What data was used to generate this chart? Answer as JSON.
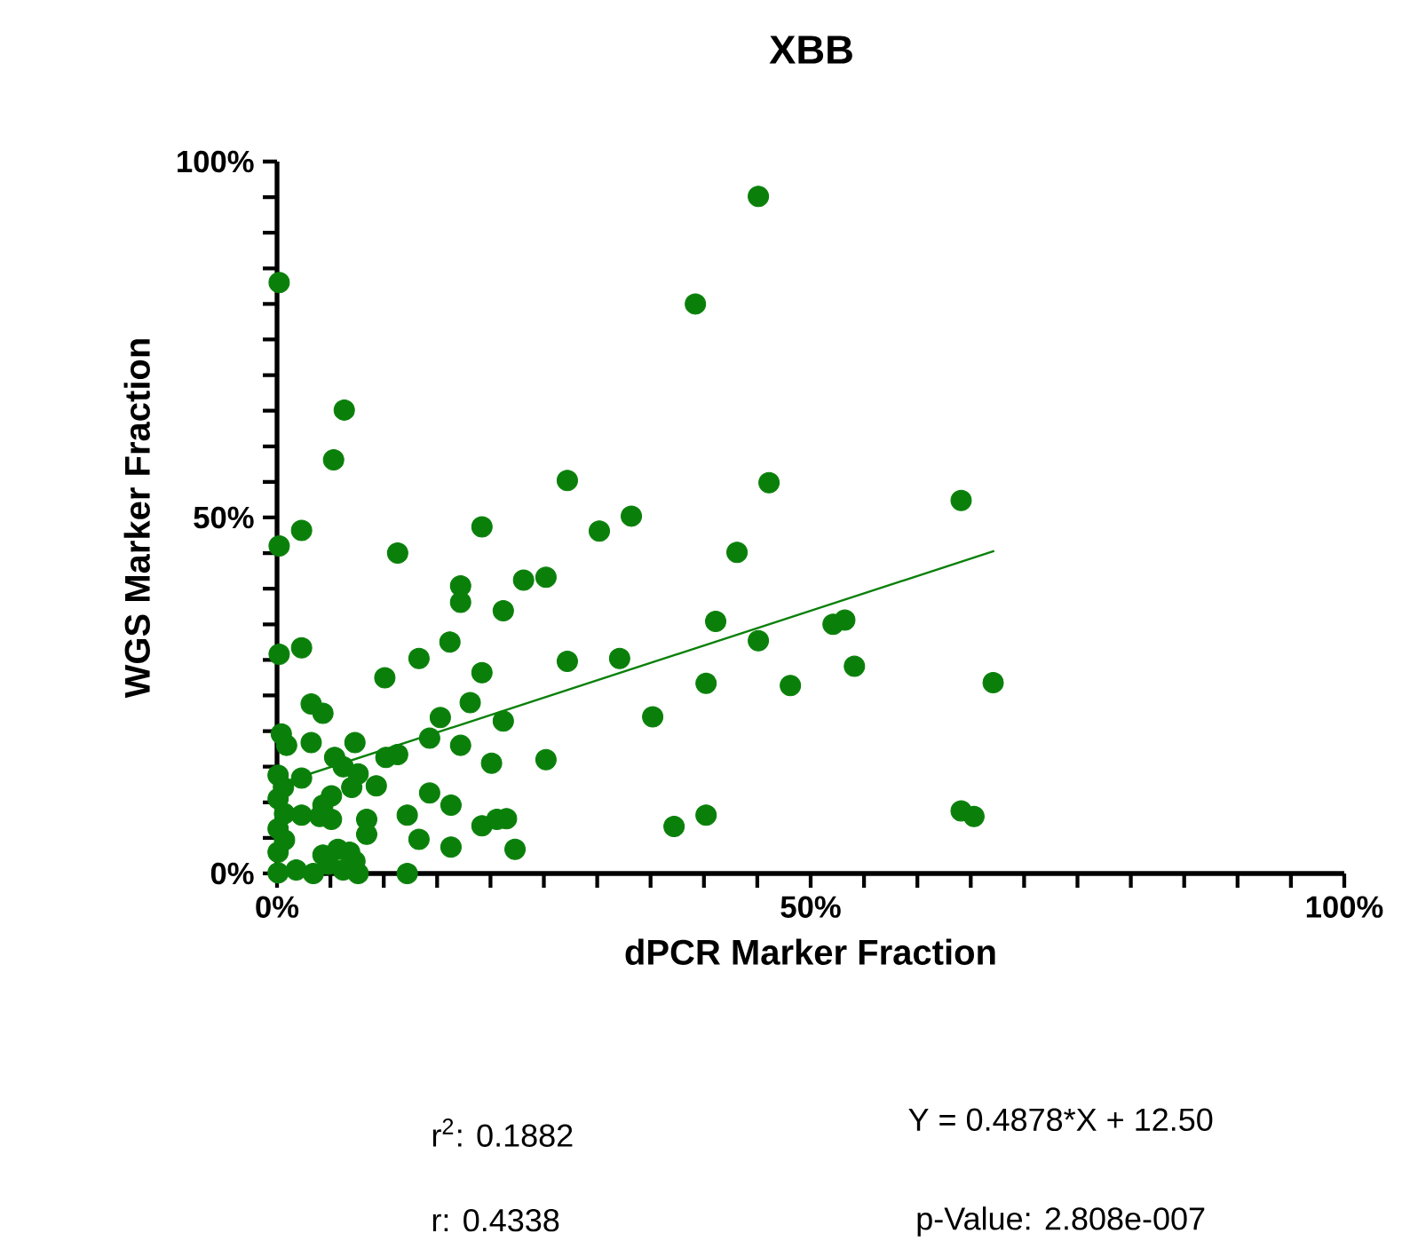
{
  "chart_data": {
    "type": "scatter",
    "title": "XBB",
    "xlabel": "dPCR Marker Fraction",
    "ylabel": "WGS Marker Fraction",
    "xlim": [
      0,
      100
    ],
    "ylim": [
      0,
      100
    ],
    "xticks": [
      {
        "value": 0,
        "label": "0%"
      },
      {
        "value": 5,
        "label": null
      },
      {
        "value": 10,
        "label": null
      },
      {
        "value": 15,
        "label": null
      },
      {
        "value": 20,
        "label": null
      },
      {
        "value": 25,
        "label": null
      },
      {
        "value": 30,
        "label": null
      },
      {
        "value": 35,
        "label": null
      },
      {
        "value": 40,
        "label": null
      },
      {
        "value": 45,
        "label": null
      },
      {
        "value": 50,
        "label": "50%"
      },
      {
        "value": 55,
        "label": null
      },
      {
        "value": 60,
        "label": null
      },
      {
        "value": 65,
        "label": null
      },
      {
        "value": 70,
        "label": null
      },
      {
        "value": 75,
        "label": null
      },
      {
        "value": 80,
        "label": null
      },
      {
        "value": 85,
        "label": null
      },
      {
        "value": 90,
        "label": null
      },
      {
        "value": 95,
        "label": null
      },
      {
        "value": 100,
        "label": "100%"
      }
    ],
    "yticks": [
      {
        "value": 0,
        "label": "0%"
      },
      {
        "value": 5,
        "label": null
      },
      {
        "value": 10,
        "label": null
      },
      {
        "value": 15,
        "label": null
      },
      {
        "value": 20,
        "label": null
      },
      {
        "value": 25,
        "label": null
      },
      {
        "value": 30,
        "label": null
      },
      {
        "value": 35,
        "label": null
      },
      {
        "value": 40,
        "label": null
      },
      {
        "value": 45,
        "label": null
      },
      {
        "value": 50,
        "label": "50%"
      },
      {
        "value": 55,
        "label": null
      },
      {
        "value": 60,
        "label": null
      },
      {
        "value": 65,
        "label": null
      },
      {
        "value": 70,
        "label": null
      },
      {
        "value": 75,
        "label": null
      },
      {
        "value": 80,
        "label": null
      },
      {
        "value": 85,
        "label": null
      },
      {
        "value": 90,
        "label": null
      },
      {
        "value": 95,
        "label": null
      },
      {
        "value": 100,
        "label": "100%"
      }
    ],
    "series": [
      {
        "marker": "circle",
        "color": "#0a800a",
        "x": [
          0.2,
          6.3,
          5.3,
          2.3,
          0.2,
          11.3,
          19.2,
          27.2,
          30.2,
          33.2,
          39.2,
          45.1,
          46.1,
          43.1,
          41.1,
          45.1,
          17.2,
          17.2,
          21.2,
          23.1,
          25.2,
          16.2,
          13.3,
          27.2,
          32.1,
          0.2,
          2.3,
          10.1,
          19.2,
          64.1,
          52.1,
          53.2,
          40.2,
          48.1,
          54.1,
          67.1,
          35.2,
          25.2,
          37.2,
          40.2,
          64.1,
          65.3,
          18.1,
          21.2,
          15.3,
          14.3,
          17.2,
          20.1,
          14.3,
          16.3,
          12.2,
          19.2,
          20.6,
          21.5,
          22.3,
          16.3,
          13.3,
          12.2,
          11.3,
          10.2,
          9.3,
          8.4,
          8.4,
          7.6,
          7.3,
          5.4,
          6.2,
          7.0,
          5.1,
          4.3,
          5.1,
          4.0,
          2.3,
          3.2,
          4.3,
          3.2,
          0.4,
          0.9,
          0.1,
          0.6,
          0.1,
          0.7,
          0.1,
          0.7,
          0.1,
          0.1,
          1.8,
          3.4,
          4.3,
          5.7,
          6.8,
          4.8,
          6.2,
          7.6,
          7.3,
          2.3
        ],
        "values": [
          83.0,
          65.1,
          58.1,
          48.2,
          46.0,
          45.0,
          48.7,
          55.2,
          48.1,
          50.2,
          80.0,
          95.1,
          54.9,
          45.1,
          35.4,
          32.7,
          40.4,
          38.1,
          36.9,
          41.2,
          41.6,
          32.5,
          30.2,
          29.8,
          30.2,
          30.8,
          31.7,
          27.5,
          28.2,
          52.4,
          35.0,
          35.6,
          26.7,
          26.4,
          29.1,
          26.8,
          22.0,
          16.0,
          6.6,
          8.2,
          8.8,
          8.0,
          24.0,
          21.4,
          21.9,
          19.0,
          18.0,
          15.5,
          11.3,
          9.6,
          8.2,
          6.7,
          7.6,
          7.7,
          3.4,
          3.7,
          4.8,
          0,
          16.7,
          16.3,
          12.3,
          7.6,
          5.5,
          14.0,
          18.4,
          16.3,
          15.0,
          12.1,
          10.9,
          9.6,
          7.6,
          8.0,
          8.2,
          23.8,
          22.5,
          18.4,
          19.6,
          18.0,
          13.8,
          12.1,
          10.5,
          8.4,
          6.3,
          4.7,
          3.0,
          0.1,
          0.5,
          0,
          2.6,
          3.4,
          3.0,
          1.3,
          0.5,
          0,
          1.7,
          13.4
        ]
      },
      {
        "type": "line",
        "marker": "none",
        "color": "#0a800a",
        "x": [
          0,
          67.2
        ],
        "values": [
          12.5,
          45.3
        ]
      }
    ],
    "annotations": [
      "r$^{2}$: 0.1882",
      "r: 0.4338",
      "Y = 0.4878*X + 12.50",
      "p-Value: 2.808e-007"
    ]
  }
}
